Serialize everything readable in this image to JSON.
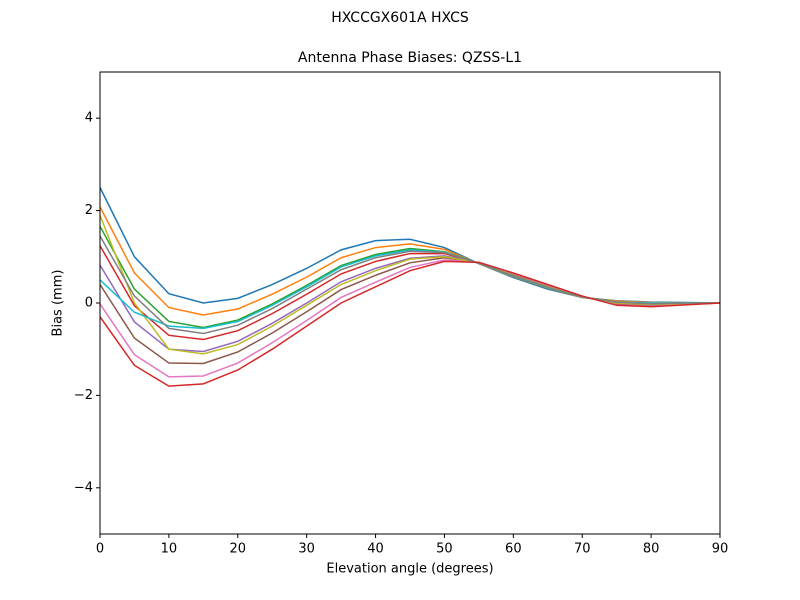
{
  "chart_data": {
    "type": "line",
    "suptitle": "HXCCGX601A      HXCS",
    "title": "Antenna Phase Biases: QZSS-L1",
    "x_label": "Elevation angle (degrees)",
    "y_label": "Bias (mm)",
    "x": [
      0,
      5,
      10,
      15,
      20,
      25,
      30,
      35,
      40,
      45,
      50,
      55,
      60,
      65,
      70,
      75,
      80,
      85,
      90
    ],
    "xlim": [
      0,
      90
    ],
    "xticks": [
      0,
      10,
      20,
      30,
      40,
      50,
      60,
      70,
      80,
      90
    ],
    "ylim": [
      -5,
      5
    ],
    "yticks": [
      {
        "value": -4,
        "label": "−4"
      },
      {
        "value": -2,
        "label": "−2"
      },
      0,
      2,
      4
    ],
    "series": [
      {
        "color": "#1f77b4",
        "values": [
          2.5,
          1.0,
          0.2,
          0.0,
          0.1,
          0.4,
          0.75,
          1.15,
          1.35,
          1.38,
          1.2,
          0.85,
          0.55,
          0.3,
          0.12,
          0.05,
          0.02,
          0.01,
          0
        ]
      },
      {
        "color": "#ff7f0e",
        "values": [
          2.08,
          0.65,
          -0.1,
          -0.26,
          -0.13,
          0.19,
          0.56,
          0.98,
          1.2,
          1.28,
          1.16,
          0.85,
          0.57,
          0.32,
          0.12,
          0.04,
          0.01,
          0,
          0
        ]
      },
      {
        "color": "#2ca02c",
        "values": [
          1.66,
          0.3,
          -0.4,
          -0.53,
          -0.37,
          -0.02,
          0.38,
          0.81,
          1.05,
          1.18,
          1.11,
          0.86,
          0.58,
          0.33,
          0.13,
          0.02,
          -0.01,
          0,
          0
        ]
      },
      {
        "color": "#d62728",
        "values": [
          1.24,
          -0.06,
          -0.7,
          -0.79,
          -0.6,
          -0.23,
          0.19,
          0.63,
          0.9,
          1.07,
          1.07,
          0.86,
          0.6,
          0.35,
          0.13,
          0.01,
          -0.03,
          -0.01,
          0
        ]
      },
      {
        "color": "#9467bd",
        "values": [
          0.82,
          -0.41,
          -1.0,
          -1.05,
          -0.83,
          -0.44,
          0.0,
          0.46,
          0.75,
          0.97,
          1.02,
          0.87,
          0.61,
          0.36,
          0.14,
          -0.01,
          -0.04,
          -0.02,
          0
        ]
      },
      {
        "color": "#8c564b",
        "values": [
          0.4,
          -0.76,
          -1.3,
          -1.31,
          -1.06,
          -0.65,
          -0.19,
          0.29,
          0.6,
          0.87,
          0.98,
          0.87,
          0.63,
          0.38,
          0.14,
          -0.03,
          -0.06,
          -0.03,
          0
        ]
      },
      {
        "color": "#e377c2",
        "values": [
          -0.02,
          -1.12,
          -1.6,
          -1.58,
          -1.3,
          -0.86,
          -0.38,
          0.12,
          0.45,
          0.77,
          0.93,
          0.88,
          0.64,
          0.39,
          0.15,
          -0.04,
          -0.07,
          -0.03,
          0
        ]
      },
      {
        "color": "#bcbd22",
        "values": [
          1.9,
          0.0,
          -1.0,
          -1.1,
          -0.9,
          -0.5,
          -0.05,
          0.4,
          0.7,
          0.95,
          1.0,
          0.87,
          0.6,
          0.35,
          0.13,
          0,
          -0.03,
          -0.01,
          0
        ]
      },
      {
        "color": "#17becf",
        "values": [
          0.5,
          -0.2,
          -0.5,
          -0.55,
          -0.4,
          -0.05,
          0.35,
          0.78,
          1.02,
          1.15,
          1.1,
          0.86,
          0.58,
          0.33,
          0.13,
          0.02,
          0,
          0,
          0
        ]
      },
      {
        "color": "#7f7f7f",
        "values": [
          1.45,
          0.15,
          -0.55,
          -0.66,
          -0.48,
          -0.12,
          0.3,
          0.72,
          0.98,
          1.12,
          1.09,
          0.86,
          0.59,
          0.34,
          0.13,
          0.02,
          -0.02,
          0,
          0
        ]
      },
      {
        "color": "#d62728",
        "values": [
          -0.3,
          -1.35,
          -1.8,
          -1.75,
          -1.45,
          -1.0,
          -0.5,
          0.0,
          0.35,
          0.7,
          0.9,
          0.88,
          0.65,
          0.4,
          0.15,
          -0.05,
          -0.08,
          -0.04,
          0
        ]
      }
    ]
  }
}
